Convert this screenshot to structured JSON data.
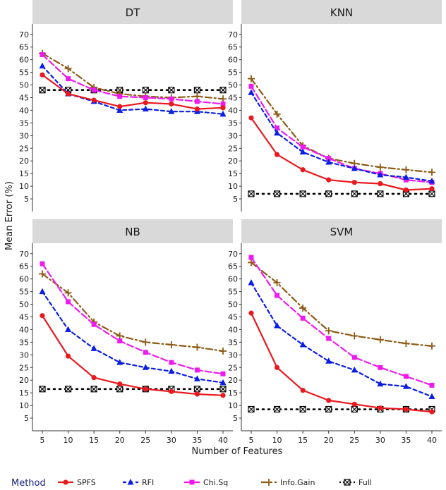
{
  "chart_data": {
    "type": "line",
    "ylabel": "Mean Error (%)",
    "xlabel": "Number of Features",
    "x": [
      5,
      10,
      15,
      20,
      25,
      30,
      35,
      40
    ],
    "xlim": [
      5,
      40
    ],
    "ylim": [
      0,
      73
    ],
    "xticks": [
      5,
      10,
      15,
      20,
      25,
      30,
      35,
      40
    ],
    "yticks": [
      5,
      10,
      15,
      20,
      25,
      30,
      35,
      40,
      45,
      50,
      55,
      60,
      65,
      70
    ],
    "legend": {
      "title": "Method",
      "position": "bottom",
      "entries": [
        "SPFS",
        "RFI",
        "Chi.Sq",
        "Info.Gain",
        "Full"
      ]
    },
    "styles": {
      "SPFS": {
        "color": "#e8191f",
        "dash": "solid",
        "marker": "circle"
      },
      "RFI": {
        "color": "#0a1ee6",
        "dash": "dash",
        "marker": "triangle"
      },
      "Chi.Sq": {
        "color": "#ee1bee",
        "dash": "longdash",
        "marker": "square"
      },
      "Info.Gain": {
        "color": "#8c5a14",
        "dash": "dashdot",
        "marker": "plus"
      },
      "Full": {
        "color": "#000000",
        "dash": "dotted",
        "marker": "boxed-x"
      }
    },
    "panels": [
      {
        "title": "DT",
        "series": [
          {
            "name": "SPFS",
            "values": [
              54,
              46.5,
              44,
              41.5,
              43,
              42.5,
              40.5,
              41
            ]
          },
          {
            "name": "RFI",
            "values": [
              57.5,
              46.5,
              43.5,
              40,
              40.5,
              39.5,
              39.5,
              38.5
            ]
          },
          {
            "name": "Chi.Sq",
            "values": [
              62,
              52.5,
              48,
              45.5,
              45,
              44.5,
              43.5,
              42.5
            ]
          },
          {
            "name": "Info.Gain",
            "values": [
              62.5,
              56.5,
              49,
              46.5,
              45.5,
              45,
              45.5,
              44.5
            ]
          },
          {
            "name": "Full",
            "values": [
              48,
              48,
              48,
              48,
              48,
              48,
              48,
              48
            ]
          }
        ]
      },
      {
        "title": "KNN",
        "series": [
          {
            "name": "SPFS",
            "values": [
              37,
              22.5,
              16.5,
              12.5,
              11.5,
              11,
              8.5,
              9
            ]
          },
          {
            "name": "RFI",
            "values": [
              47,
              31,
              23.5,
              19.5,
              17,
              14.5,
              13.5,
              12
            ]
          },
          {
            "name": "Chi.Sq",
            "values": [
              49.5,
              33,
              25.5,
              21,
              17,
              15,
              12.5,
              11.5
            ]
          },
          {
            "name": "Info.Gain",
            "values": [
              52.5,
              38.5,
              26,
              21,
              19,
              17.5,
              16.5,
              15.5
            ]
          },
          {
            "name": "Full",
            "values": [
              7,
              7,
              7,
              7,
              7,
              7,
              7,
              7
            ]
          }
        ]
      },
      {
        "title": "NB",
        "series": [
          {
            "name": "SPFS",
            "values": [
              45.5,
              29.5,
              21,
              18.5,
              16.5,
              15.5,
              14.5,
              14
            ]
          },
          {
            "name": "RFI",
            "values": [
              55,
              40,
              32.5,
              27,
              25,
              23.5,
              20.5,
              19
            ]
          },
          {
            "name": "Chi.Sq",
            "values": [
              66,
              51,
              42,
              35.5,
              31,
              27,
              24,
              22.5
            ]
          },
          {
            "name": "Info.Gain",
            "values": [
              62,
              54.5,
              43,
              37.5,
              35,
              34,
              33,
              31.5
            ]
          },
          {
            "name": "Full",
            "values": [
              16.5,
              16.5,
              16.5,
              16.5,
              16.5,
              16.5,
              16.5,
              16.5
            ]
          }
        ]
      },
      {
        "title": "SVM",
        "series": [
          {
            "name": "SPFS",
            "values": [
              46.5,
              25,
              16,
              12,
              10.5,
              9,
              8.5,
              7.5
            ]
          },
          {
            "name": "RFI",
            "values": [
              58.5,
              41.5,
              34,
              27.5,
              24,
              18.5,
              17.5,
              13.5
            ]
          },
          {
            "name": "Chi.Sq",
            "values": [
              68.5,
              53.5,
              44.5,
              36.5,
              29,
              25,
              21.5,
              18
            ]
          },
          {
            "name": "Info.Gain",
            "values": [
              66.5,
              58.5,
              48.5,
              39.5,
              37.5,
              36,
              34.5,
              33.5
            ]
          },
          {
            "name": "Full",
            "values": [
              8.5,
              8.5,
              8.5,
              8.5,
              8.5,
              8.5,
              8.5,
              8.5
            ]
          }
        ]
      }
    ]
  }
}
